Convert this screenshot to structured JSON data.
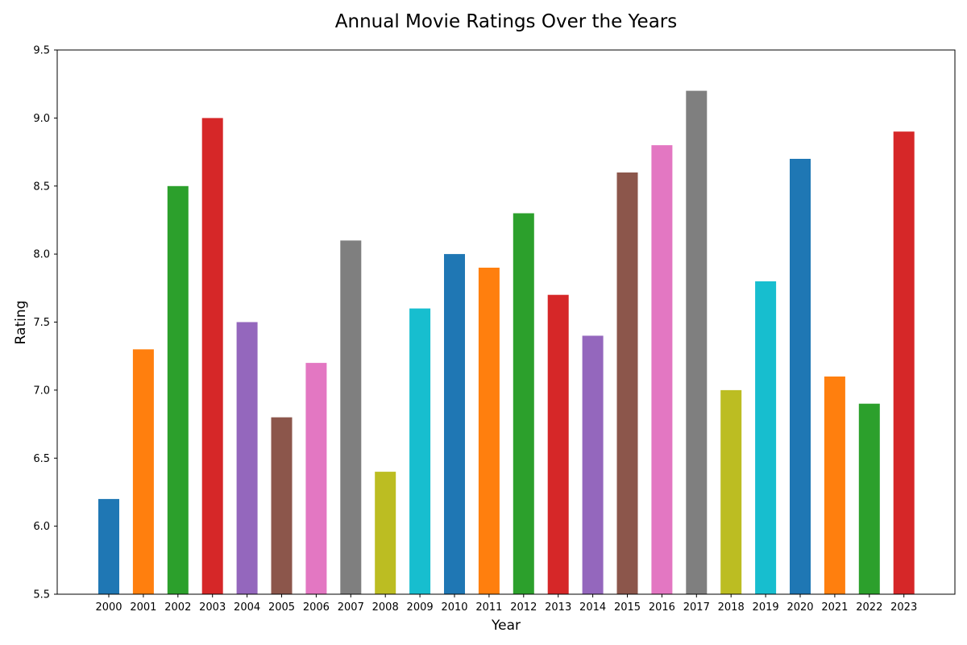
{
  "chart_data": {
    "type": "bar",
    "title": "Annual Movie Ratings Over the Years",
    "xlabel": "Year",
    "ylabel": "Rating",
    "ylim": [
      5.5,
      9.5
    ],
    "yticks": [
      "5.5",
      "6.0",
      "6.5",
      "7.0",
      "7.5",
      "8.0",
      "8.5",
      "9.0",
      "9.5"
    ],
    "grid": false,
    "categories": [
      "2000",
      "2001",
      "2002",
      "2003",
      "2004",
      "2005",
      "2006",
      "2007",
      "2008",
      "2009",
      "2010",
      "2011",
      "2012",
      "2013",
      "2014",
      "2015",
      "2016",
      "2017",
      "2018",
      "2019",
      "2020",
      "2021",
      "2022",
      "2023"
    ],
    "values": [
      6.2,
      7.3,
      8.5,
      9.0,
      7.5,
      6.8,
      7.2,
      8.1,
      6.4,
      7.6,
      8.0,
      7.9,
      8.3,
      7.7,
      7.4,
      8.6,
      8.8,
      9.2,
      7.0,
      7.8,
      8.7,
      7.1,
      6.9,
      8.9
    ],
    "colors": [
      "#1f77b4",
      "#ff7f0e",
      "#2ca02c",
      "#d62728",
      "#9467bd",
      "#8c564b",
      "#e377c2",
      "#7f7f7f",
      "#bcbd22",
      "#17becf"
    ]
  }
}
